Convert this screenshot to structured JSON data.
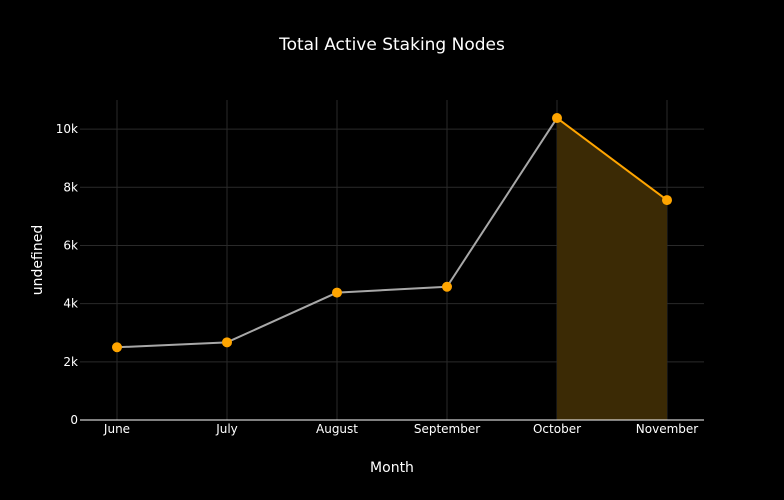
{
  "chart_data": {
    "type": "line",
    "title": "Total Active Staking Nodes",
    "xlabel": "Month",
    "ylabel": "undefined",
    "categories": [
      "June",
      "July",
      "August",
      "September",
      "October",
      "November"
    ],
    "series": [
      {
        "values": [
          2500,
          2670,
          4380,
          4580,
          10380,
          7560
        ]
      }
    ],
    "highlight": {
      "from": "October",
      "to": "November"
    },
    "ylim": [
      0,
      11000
    ],
    "yticks": [
      0,
      2000,
      4000,
      6000,
      8000,
      10000
    ],
    "ytick_labels": [
      "0",
      "2k",
      "4k",
      "6k",
      "8k",
      "10k"
    ],
    "grid": true,
    "colors": {
      "line": "#a8a8a8",
      "highlight_line": "#ffa500",
      "marker": "#ffa500",
      "highlight_fill": "#3b2a05",
      "background": "#000000"
    }
  }
}
